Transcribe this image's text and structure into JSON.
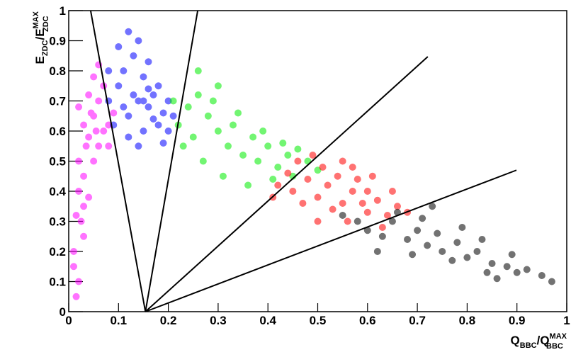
{
  "chart_data": {
    "type": "scatter",
    "x_label": [
      "Q",
      "BBC",
      "/Q",
      "MAX",
      "BBC"
    ],
    "y_label": [
      "E",
      "ZDC",
      "/E",
      "MAX",
      "ZDC"
    ],
    "xlim": [
      0,
      1
    ],
    "ylim": [
      0,
      1
    ],
    "xticks": [
      0,
      0.1,
      0.2,
      0.3,
      0.4,
      0.5,
      0.6,
      0.7,
      0.8,
      0.9,
      1
    ],
    "yticks": [
      0,
      0.1,
      0.2,
      0.3,
      0.4,
      0.5,
      0.6,
      0.7,
      0.8,
      0.9,
      1
    ],
    "series": [
      {
        "color": "#ff00ff",
        "x": [
          0.02,
          0.01,
          0.03,
          0.015,
          0.02,
          0.04,
          0.03,
          0.05,
          0.02,
          0.06,
          0.04,
          0.07,
          0.05,
          0.08,
          0.03,
          0.06,
          0.09,
          0.04,
          0.07,
          0.05,
          0.02,
          0.01,
          0.025,
          0.035,
          0.08,
          0.045,
          0.06,
          0.015,
          0.03,
          0.055
        ],
        "values": [
          0.1,
          0.2,
          0.25,
          0.32,
          0.4,
          0.38,
          0.45,
          0.5,
          0.5,
          0.55,
          0.58,
          0.6,
          0.65,
          0.62,
          0.62,
          0.7,
          0.66,
          0.72,
          0.75,
          0.78,
          0.68,
          0.15,
          0.3,
          0.55,
          0.55,
          0.66,
          0.82,
          0.05,
          0.35,
          0.6
        ]
      },
      {
        "color": "#0000ff",
        "x": [
          0.08,
          0.1,
          0.12,
          0.14,
          0.16,
          0.18,
          0.2,
          0.11,
          0.13,
          0.15,
          0.17,
          0.19,
          0.09,
          0.12,
          0.15,
          0.18,
          0.1,
          0.14,
          0.16,
          0.2,
          0.13,
          0.11,
          0.17,
          0.15,
          0.19,
          0.12,
          0.08,
          0.21,
          0.14,
          0.16
        ],
        "values": [
          0.7,
          0.75,
          0.65,
          0.7,
          0.68,
          0.62,
          0.6,
          0.8,
          0.85,
          0.78,
          0.72,
          0.66,
          0.62,
          0.58,
          0.6,
          0.75,
          0.88,
          0.9,
          0.83,
          0.7,
          0.72,
          0.68,
          0.64,
          0.7,
          0.56,
          0.93,
          0.8,
          0.65,
          0.55,
          0.74
        ]
      },
      {
        "color": "#00ee00",
        "x": [
          0.22,
          0.24,
          0.26,
          0.25,
          0.28,
          0.3,
          0.32,
          0.29,
          0.33,
          0.35,
          0.37,
          0.38,
          0.4,
          0.42,
          0.44,
          0.45,
          0.48,
          0.5,
          0.27,
          0.31,
          0.36,
          0.23,
          0.26,
          0.34,
          0.39,
          0.43,
          0.21,
          0.3,
          0.41,
          0.46
        ],
        "values": [
          0.62,
          0.68,
          0.72,
          0.58,
          0.65,
          0.6,
          0.55,
          0.7,
          0.62,
          0.52,
          0.58,
          0.5,
          0.55,
          0.48,
          0.52,
          0.45,
          0.5,
          0.47,
          0.5,
          0.45,
          0.42,
          0.55,
          0.8,
          0.66,
          0.6,
          0.56,
          0.7,
          0.75,
          0.44,
          0.54
        ]
      },
      {
        "color": "#ff0000",
        "x": [
          0.42,
          0.45,
          0.48,
          0.5,
          0.52,
          0.55,
          0.57,
          0.6,
          0.62,
          0.64,
          0.47,
          0.51,
          0.54,
          0.56,
          0.58,
          0.6,
          0.63,
          0.66,
          0.44,
          0.49,
          0.53,
          0.59,
          0.41,
          0.55,
          0.61,
          0.65,
          0.68,
          0.5,
          0.46,
          0.57
        ],
        "values": [
          0.42,
          0.4,
          0.44,
          0.38,
          0.42,
          0.36,
          0.4,
          0.33,
          0.37,
          0.32,
          0.36,
          0.48,
          0.45,
          0.3,
          0.44,
          0.4,
          0.28,
          0.35,
          0.46,
          0.52,
          0.34,
          0.36,
          0.38,
          0.5,
          0.45,
          0.4,
          0.33,
          0.3,
          0.5,
          0.48
        ]
      },
      {
        "color": "#000000",
        "x": [
          0.58,
          0.6,
          0.63,
          0.65,
          0.68,
          0.7,
          0.72,
          0.75,
          0.78,
          0.8,
          0.82,
          0.85,
          0.88,
          0.9,
          0.92,
          0.95,
          0.66,
          0.71,
          0.74,
          0.77,
          0.83,
          0.86,
          0.62,
          0.69,
          0.79,
          0.89,
          0.97,
          0.55,
          0.73,
          0.84
        ],
        "values": [
          0.3,
          0.27,
          0.25,
          0.3,
          0.24,
          0.27,
          0.22,
          0.2,
          0.23,
          0.18,
          0.2,
          0.16,
          0.15,
          0.13,
          0.14,
          0.12,
          0.33,
          0.31,
          0.26,
          0.17,
          0.24,
          0.11,
          0.2,
          0.19,
          0.28,
          0.19,
          0.1,
          0.32,
          0.35,
          0.13
        ]
      }
    ],
    "lines": [
      {
        "x": [
          0.154,
          0.044
        ],
        "y": [
          0,
          1
        ]
      },
      {
        "x": [
          0.154,
          0.259
        ],
        "y": [
          0,
          1
        ]
      },
      {
        "x": [
          0.154,
          0.721
        ],
        "y": [
          0,
          0.847
        ]
      },
      {
        "x": [
          0.154,
          0.899
        ],
        "y": [
          0,
          0.47
        ]
      }
    ]
  }
}
